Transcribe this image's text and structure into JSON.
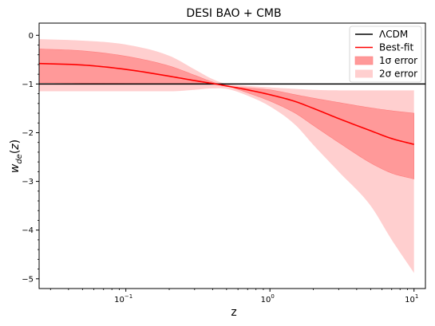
{
  "chart_data": {
    "type": "area",
    "title": "DESI BAO + CMB",
    "xlabel": "z",
    "ylabel": "w_de(z)",
    "xscale": "log",
    "xlim": [
      0.025,
      12
    ],
    "ylim": [
      -5.2,
      0.25
    ],
    "x_ticks": [
      {
        "value": 0.1,
        "base": "10",
        "exp": "−1"
      },
      {
        "value": 1,
        "base": "10",
        "exp": "0"
      },
      {
        "value": 10,
        "base": "10",
        "exp": "1"
      }
    ],
    "y_ticks": [
      {
        "value": 0,
        "label": "0"
      },
      {
        "value": -1,
        "label": "−1"
      },
      {
        "value": -2,
        "label": "−2"
      },
      {
        "value": -3,
        "label": "−3"
      },
      {
        "value": -4,
        "label": "−4"
      },
      {
        "value": -5,
        "label": "−5"
      }
    ],
    "grid": false,
    "legend_position": "top-right",
    "legend": [
      {
        "key": "lcdm",
        "label": "ΛCDM"
      },
      {
        "key": "bestfit",
        "label": "Best-fit"
      },
      {
        "key": "one_sigma",
        "label": "1σ error"
      },
      {
        "key": "two_sigma",
        "label": "2σ error"
      }
    ],
    "colors": {
      "lcdm": "#000000",
      "bestfit": "#ff0000",
      "one_sigma": "#ff9999",
      "two_sigma": "#ffcfcf",
      "one_sigma_edge": "#ff7f7f"
    },
    "x": [
      0.025,
      0.05,
      0.1,
      0.2,
      0.3,
      0.4,
      0.5,
      0.7,
      1.0,
      1.5,
      2.0,
      3.0,
      5.0,
      7.0,
      10.0
    ],
    "lcdm": {
      "name": "ΛCDM",
      "y": -1.0
    },
    "series": [
      {
        "name": "Best-fit",
        "key": "bestfit",
        "values": [
          -0.58,
          -0.61,
          -0.7,
          -0.84,
          -0.93,
          -0.99,
          -1.04,
          -1.12,
          -1.22,
          -1.36,
          -1.5,
          -1.71,
          -1.96,
          -2.12,
          -2.24
        ]
      },
      {
        "name": "1σ error",
        "key": "one_sigma",
        "lower": [
          -0.97,
          -0.98,
          -0.99,
          -1.0,
          -1.0,
          -1.0,
          -1.04,
          -1.18,
          -1.35,
          -1.6,
          -1.85,
          -2.2,
          -2.62,
          -2.83,
          -2.95
        ],
        "upper": [
          -0.28,
          -0.32,
          -0.43,
          -0.63,
          -0.82,
          -0.96,
          -1.04,
          -1.08,
          -1.12,
          -1.22,
          -1.29,
          -1.38,
          -1.49,
          -1.55,
          -1.6
        ]
      },
      {
        "name": "2σ error",
        "key": "two_sigma",
        "lower": [
          -1.15,
          -1.15,
          -1.15,
          -1.15,
          -1.12,
          -1.09,
          -1.1,
          -1.24,
          -1.46,
          -1.84,
          -2.25,
          -2.8,
          -3.5,
          -4.2,
          -4.88
        ],
        "upper": [
          -0.08,
          -0.11,
          -0.19,
          -0.42,
          -0.7,
          -0.9,
          -1.0,
          -1.04,
          -1.07,
          -1.1,
          -1.12,
          -1.13,
          -1.13,
          -1.13,
          -1.13
        ]
      }
    ]
  }
}
